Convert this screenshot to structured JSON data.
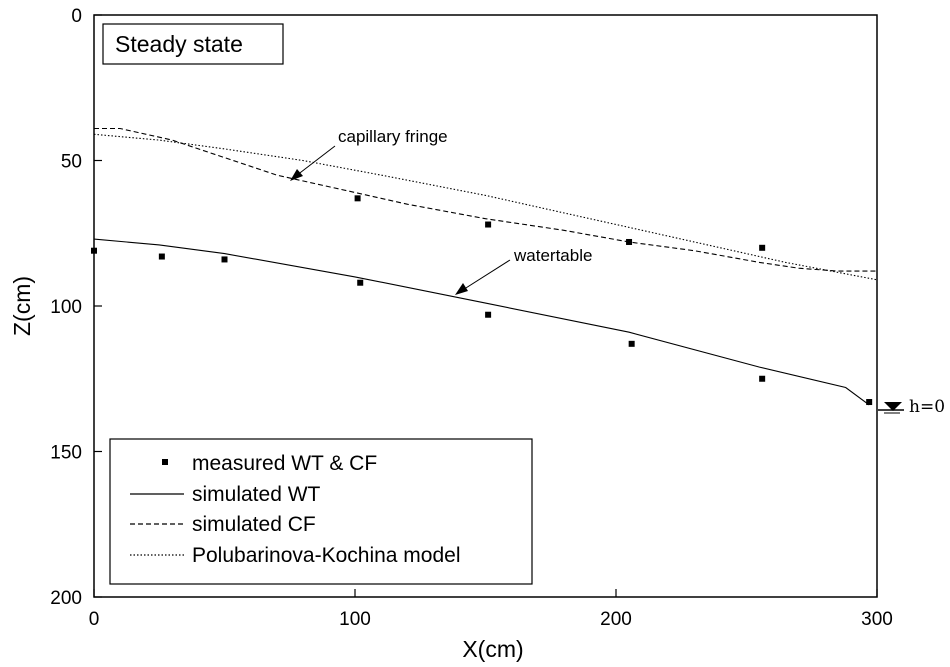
{
  "chart_data": {
    "type": "line",
    "title": "Steady state",
    "xlabel": "X(cm)",
    "ylabel": "Z(cm)",
    "xlim": [
      0,
      300
    ],
    "ylim": [
      0,
      200
    ],
    "y_inverted": true,
    "x_ticks": [
      0,
      100,
      200,
      300
    ],
    "y_ticks": [
      0,
      50,
      100,
      150,
      200
    ],
    "legend_position": "bottom-left",
    "series": [
      {
        "name": "measured WT & CF",
        "style": "square-markers",
        "points": [
          [
            0,
            81
          ],
          [
            26,
            83
          ],
          [
            50,
            84
          ],
          [
            102,
            92
          ],
          [
            151,
            103
          ],
          [
            206,
            113
          ],
          [
            256,
            125
          ],
          [
            297,
            133
          ],
          [
            101,
            63
          ],
          [
            151,
            72
          ],
          [
            205,
            78
          ],
          [
            256,
            80
          ]
        ]
      },
      {
        "name": "simulated WT",
        "style": "solid",
        "x": [
          0,
          25,
          50,
          100,
          150,
          205,
          255,
          288,
          297
        ],
        "y": [
          77,
          79,
          82,
          90,
          99,
          109,
          121,
          128,
          134
        ]
      },
      {
        "name": "simulated CF",
        "style": "dashed",
        "x": [
          0,
          10,
          20,
          30,
          40,
          50,
          60,
          70,
          80,
          100,
          120,
          150,
          180,
          205,
          230,
          255,
          270,
          285,
          300
        ],
        "y": [
          39,
          39,
          41,
          43,
          46,
          49,
          52,
          55,
          57,
          61,
          65,
          70,
          74,
          78,
          81,
          85,
          87,
          88,
          88
        ]
      },
      {
        "name": "Polubarinova-Kochina model",
        "style": "dotted",
        "x": [
          0,
          25,
          50,
          80,
          110,
          150,
          180,
          205,
          240,
          265,
          300
        ],
        "y": [
          41,
          43,
          46,
          50,
          55,
          62,
          68,
          73,
          80,
          85,
          91
        ]
      }
    ],
    "annotations": [
      {
        "label": "capillary fringe",
        "target": [
          75,
          57
        ]
      },
      {
        "label": "watertable",
        "target": [
          139,
          96
        ]
      },
      {
        "label": "h=0",
        "at": [
          300,
          135
        ]
      }
    ]
  }
}
